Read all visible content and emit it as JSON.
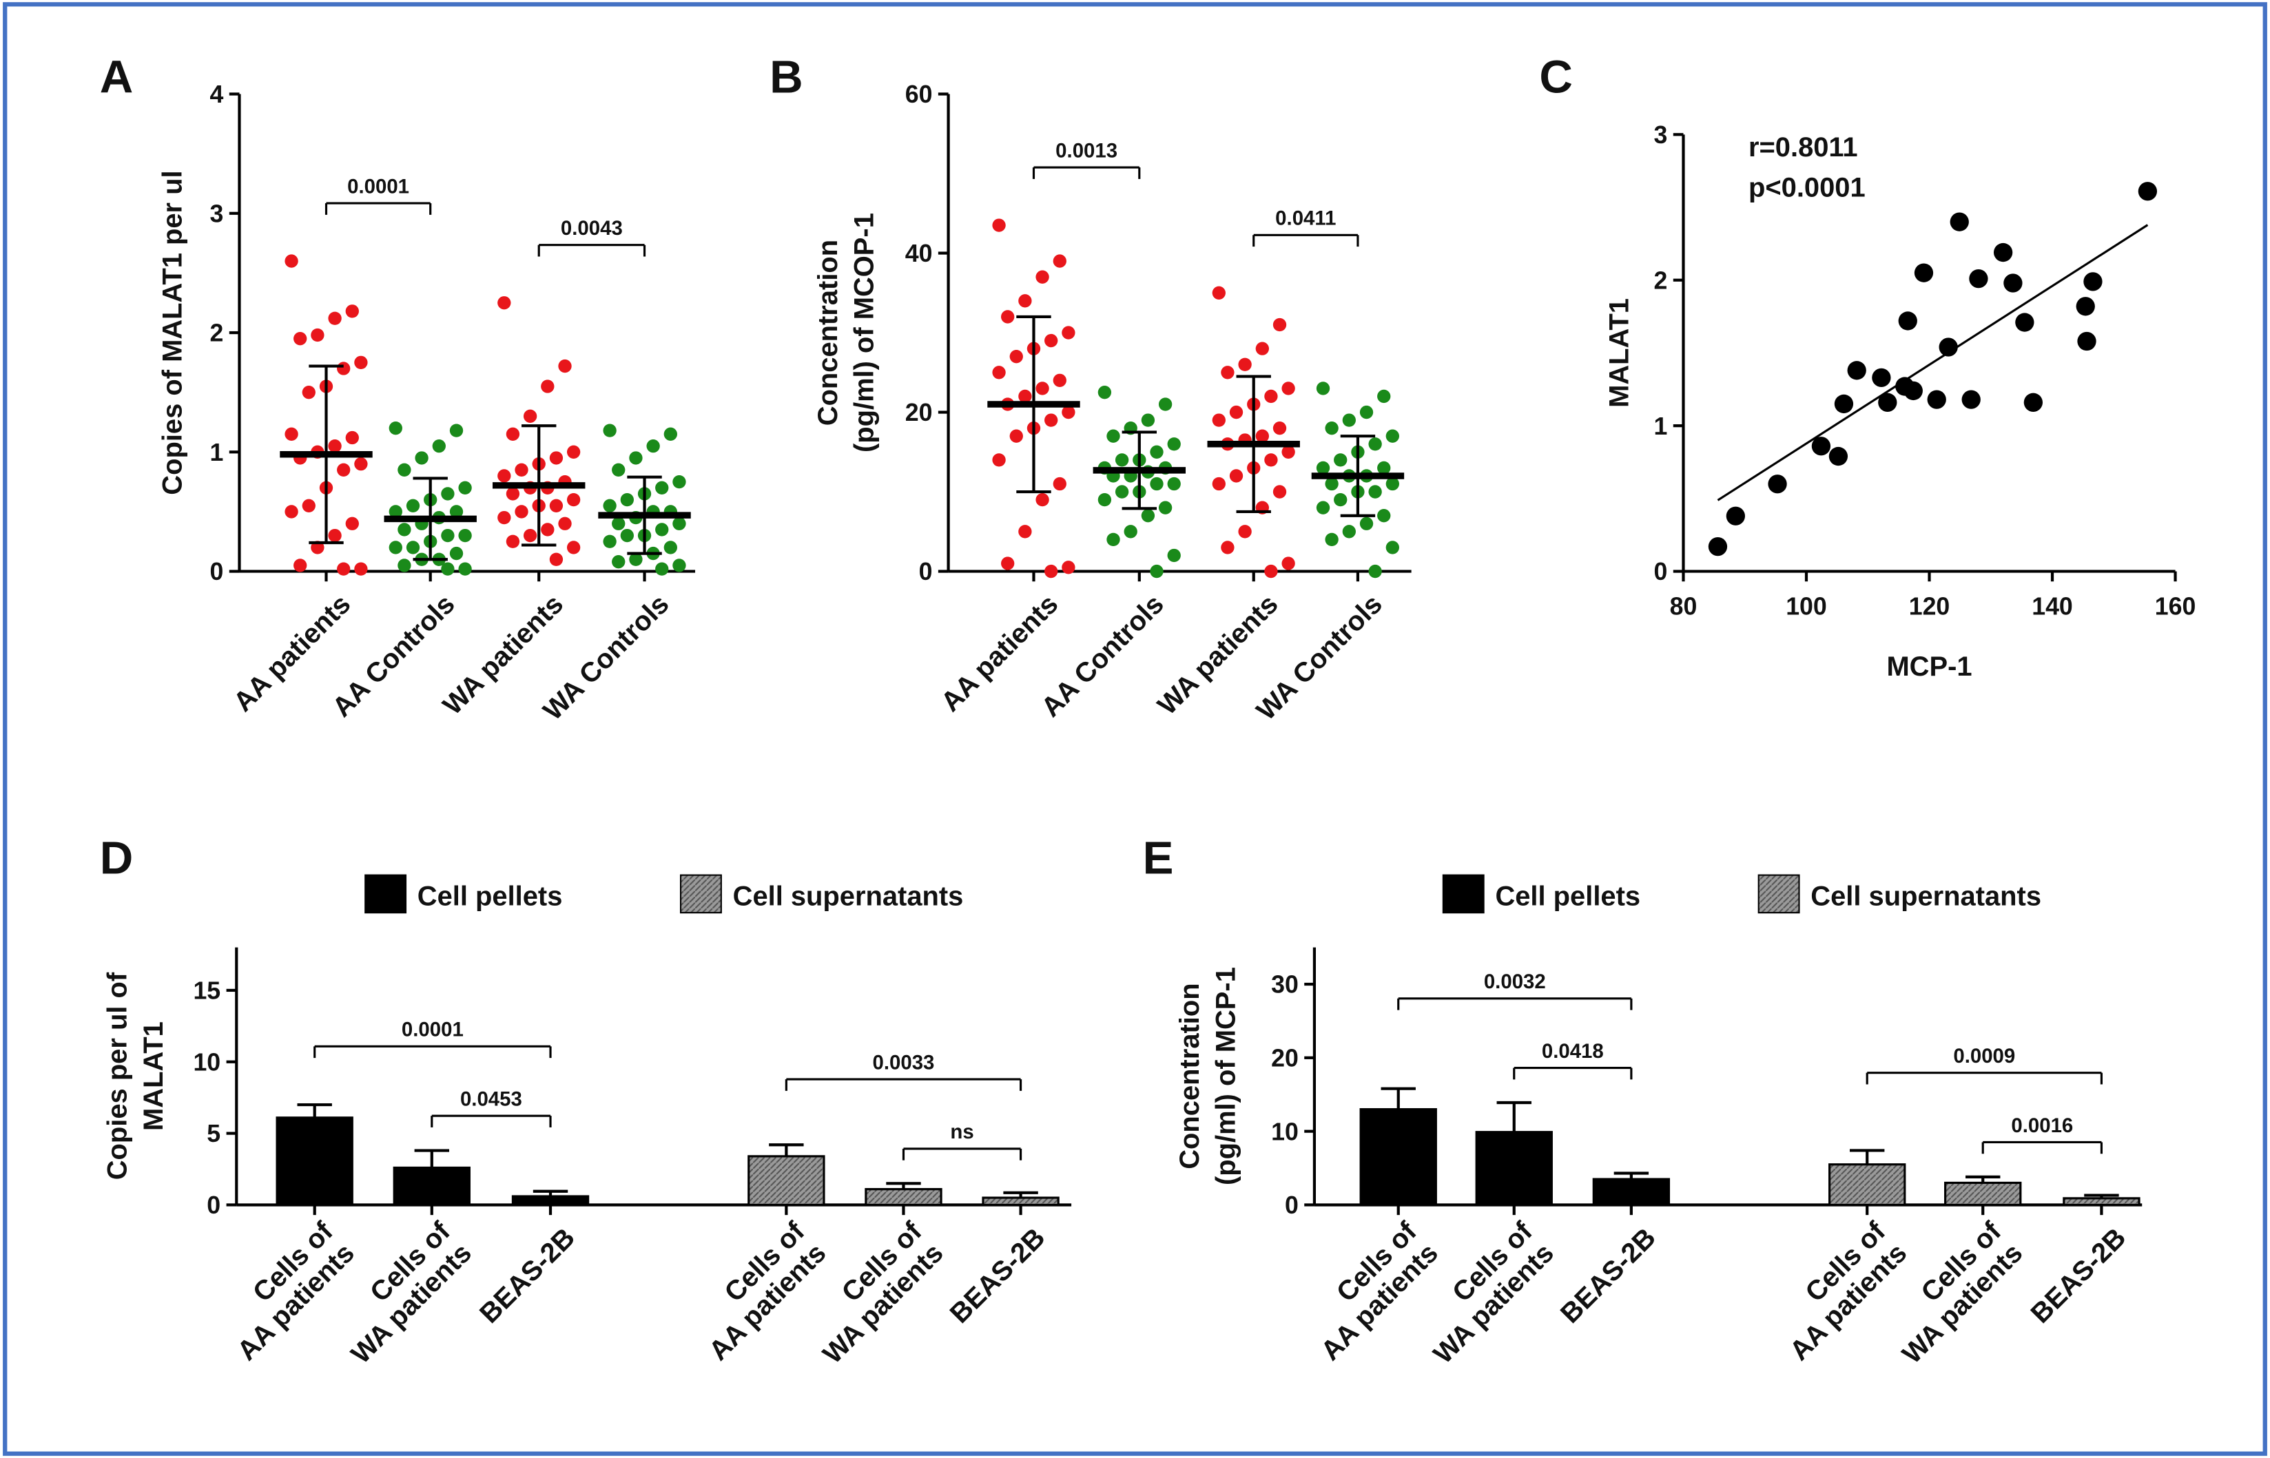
{
  "chart_data": [
    {
      "type": "dot",
      "label": "A",
      "ylabel": "Copies of MALAT1 per ul",
      "categories": [
        "AA patients",
        "AA Controls",
        "WA patients",
        "WA Controls"
      ],
      "colors": [
        "#e8161b",
        "#1a8a1a",
        "#e8161b",
        "#1a8a1a"
      ],
      "points": [
        [
          2.6,
          2.18,
          2.12,
          1.98,
          1.95,
          1.75,
          1.7,
          1.55,
          1.5,
          1.15,
          1.12,
          1.05,
          1.0,
          0.95,
          0.9,
          0.85,
          0.7,
          0.55,
          0.5,
          0.4,
          0.3,
          0.2,
          0.05,
          0.02,
          0.02
        ],
        [
          1.2,
          1.18,
          1.05,
          0.95,
          0.85,
          0.7,
          0.65,
          0.6,
          0.55,
          0.5,
          0.5,
          0.45,
          0.4,
          0.35,
          0.3,
          0.3,
          0.25,
          0.2,
          0.2,
          0.15,
          0.1,
          0.1,
          0.05,
          0.02,
          0.02
        ],
        [
          2.25,
          1.72,
          1.55,
          1.3,
          1.15,
          1.0,
          0.95,
          0.9,
          0.85,
          0.8,
          0.75,
          0.7,
          0.7,
          0.65,
          0.6,
          0.55,
          0.55,
          0.5,
          0.45,
          0.4,
          0.35,
          0.3,
          0.25,
          0.2,
          0.1
        ],
        [
          1.18,
          1.15,
          1.05,
          0.95,
          0.85,
          0.75,
          0.7,
          0.65,
          0.6,
          0.55,
          0.5,
          0.5,
          0.45,
          0.4,
          0.4,
          0.35,
          0.3,
          0.3,
          0.25,
          0.2,
          0.15,
          0.1,
          0.08,
          0.05,
          0.02
        ]
      ],
      "means": [
        0.98,
        0.44,
        0.72,
        0.47
      ],
      "sds": [
        0.74,
        0.34,
        0.5,
        0.32
      ],
      "ylim": [
        0,
        4
      ],
      "yticks": [
        0,
        1,
        2,
        3,
        4
      ],
      "comparisons": [
        {
          "from": 0,
          "to": 1,
          "label": "0.0001"
        },
        {
          "from": 2,
          "to": 3,
          "label": "0.0043"
        }
      ]
    },
    {
      "type": "dot",
      "label": "B",
      "ylabel": [
        "Concentration",
        "(pg/ml) of MCOP-1"
      ],
      "categories": [
        "AA patients",
        "AA Controls",
        "WA patients",
        "WA Controls"
      ],
      "colors": [
        "#e8161b",
        "#1a8a1a",
        "#e8161b",
        "#1a8a1a"
      ],
      "points": [
        [
          43.5,
          39,
          37,
          34,
          32,
          30,
          29,
          28,
          27,
          25,
          24,
          23,
          22,
          21,
          20,
          19,
          18,
          17,
          14,
          11,
          9,
          5,
          1,
          0.5,
          0
        ],
        [
          22.5,
          21,
          19,
          18,
          17,
          16,
          15,
          14,
          14,
          13,
          13,
          12.5,
          12,
          12,
          11,
          11,
          10,
          10,
          9,
          8,
          7,
          5,
          4,
          2,
          0
        ],
        [
          35,
          31,
          28,
          26,
          25,
          23,
          22,
          21,
          20,
          19,
          18,
          17,
          16.5,
          16,
          15,
          14,
          13,
          12,
          11,
          10,
          8,
          5,
          3,
          1,
          0
        ],
        [
          23,
          22,
          20,
          19,
          18,
          17,
          16,
          15,
          14,
          13,
          13,
          12,
          12,
          11,
          11,
          10,
          10,
          9,
          8,
          7,
          6,
          5,
          4,
          3,
          0
        ]
      ],
      "means": [
        21,
        12.7,
        16,
        12
      ],
      "sds": [
        11,
        4.8,
        8.5,
        5
      ],
      "ylim": [
        0,
        60
      ],
      "yticks": [
        0,
        20,
        40,
        60
      ],
      "comparisons": [
        {
          "from": 0,
          "to": 1,
          "label": "0.0013"
        },
        {
          "from": 2,
          "to": 3,
          "label": "0.0411"
        }
      ]
    },
    {
      "type": "scatter",
      "label": "C",
      "xlabel": "MCP-1",
      "ylabel": "MALAT1",
      "annotations": [
        "r=0.8011",
        "p<0.0001"
      ],
      "color": "#000000",
      "x": [
        85.6,
        88.5,
        95.3,
        102.4,
        105.2,
        106.1,
        108.2,
        112.2,
        113.2,
        116,
        117.4,
        116.5,
        119.1,
        121.2,
        123.1,
        124.9,
        126.8,
        128,
        132,
        133.6,
        135.5,
        136.9,
        145.4,
        145.6,
        146.6,
        155.5
      ],
      "y": [
        0.17,
        0.38,
        0.6,
        0.86,
        0.79,
        1.15,
        1.38,
        1.33,
        1.16,
        1.27,
        1.24,
        1.72,
        2.05,
        1.18,
        1.54,
        2.4,
        1.18,
        2.01,
        2.19,
        1.98,
        1.71,
        1.16,
        1.82,
        1.58,
        1.99,
        2.61
      ],
      "xlim": [
        80,
        160
      ],
      "xticks": [
        80,
        100,
        120,
        140,
        160
      ],
      "ylim": [
        0,
        3
      ],
      "yticks": [
        0,
        1,
        2,
        3
      ]
    },
    {
      "type": "bar",
      "label": "D",
      "ylabel": [
        "Copies per ul of",
        "MALAT1"
      ],
      "categories": [
        [
          "Cells of",
          "AA patients"
        ],
        [
          "Cells of",
          "WA patients"
        ],
        [
          "BEAS-2B"
        ]
      ],
      "series": [
        {
          "name": "Cell pellets",
          "color": "#000000",
          "values": [
            6.1,
            2.6,
            0.6
          ],
          "errors": [
            0.9,
            1.2,
            0.35
          ]
        },
        {
          "name": "Cell supernatants",
          "color": "#9a9a9a",
          "values": [
            3.4,
            1.1,
            0.5
          ],
          "errors": [
            0.8,
            0.4,
            0.35
          ]
        }
      ],
      "ylim": [
        0,
        18
      ],
      "yticks": [
        0,
        5,
        10,
        15
      ],
      "comparisons": [
        {
          "series": 0,
          "from": 1,
          "to": 2,
          "label": "0.0453"
        },
        {
          "series": 0,
          "from": 0,
          "to": 2,
          "label": "0.0001"
        },
        {
          "series": 1,
          "from": 1,
          "to": 2,
          "label": "ns"
        },
        {
          "series": 1,
          "from": 0,
          "to": 2,
          "label": "0.0033"
        }
      ]
    },
    {
      "type": "bar",
      "label": "E",
      "ylabel": [
        "Concentration",
        "(pg/ml) of MCP-1"
      ],
      "categories": [
        [
          "Cells of",
          "AA patients"
        ],
        [
          "Cells of",
          "WA patients"
        ],
        [
          "BEAS-2B"
        ]
      ],
      "series": [
        {
          "name": "Cell pellets",
          "color": "#000000",
          "values": [
            13,
            9.9,
            3.5
          ],
          "errors": [
            2.8,
            4,
            0.8
          ]
        },
        {
          "name": "Cell supernatants",
          "color": "#9a9a9a",
          "values": [
            5.5,
            3,
            0.9
          ],
          "errors": [
            1.9,
            0.8,
            0.4
          ]
        }
      ],
      "ylim": [
        0,
        35
      ],
      "yticks": [
        0,
        10,
        20,
        30
      ],
      "comparisons": [
        {
          "series": 0,
          "from": 1,
          "to": 2,
          "label": "0.0418"
        },
        {
          "series": 0,
          "from": 0,
          "to": 2,
          "label": "0.0032"
        },
        {
          "series": 1,
          "from": 1,
          "to": 2,
          "label": "0.0016"
        },
        {
          "series": 1,
          "from": 0,
          "to": 2,
          "label": "0.0009"
        }
      ]
    }
  ]
}
